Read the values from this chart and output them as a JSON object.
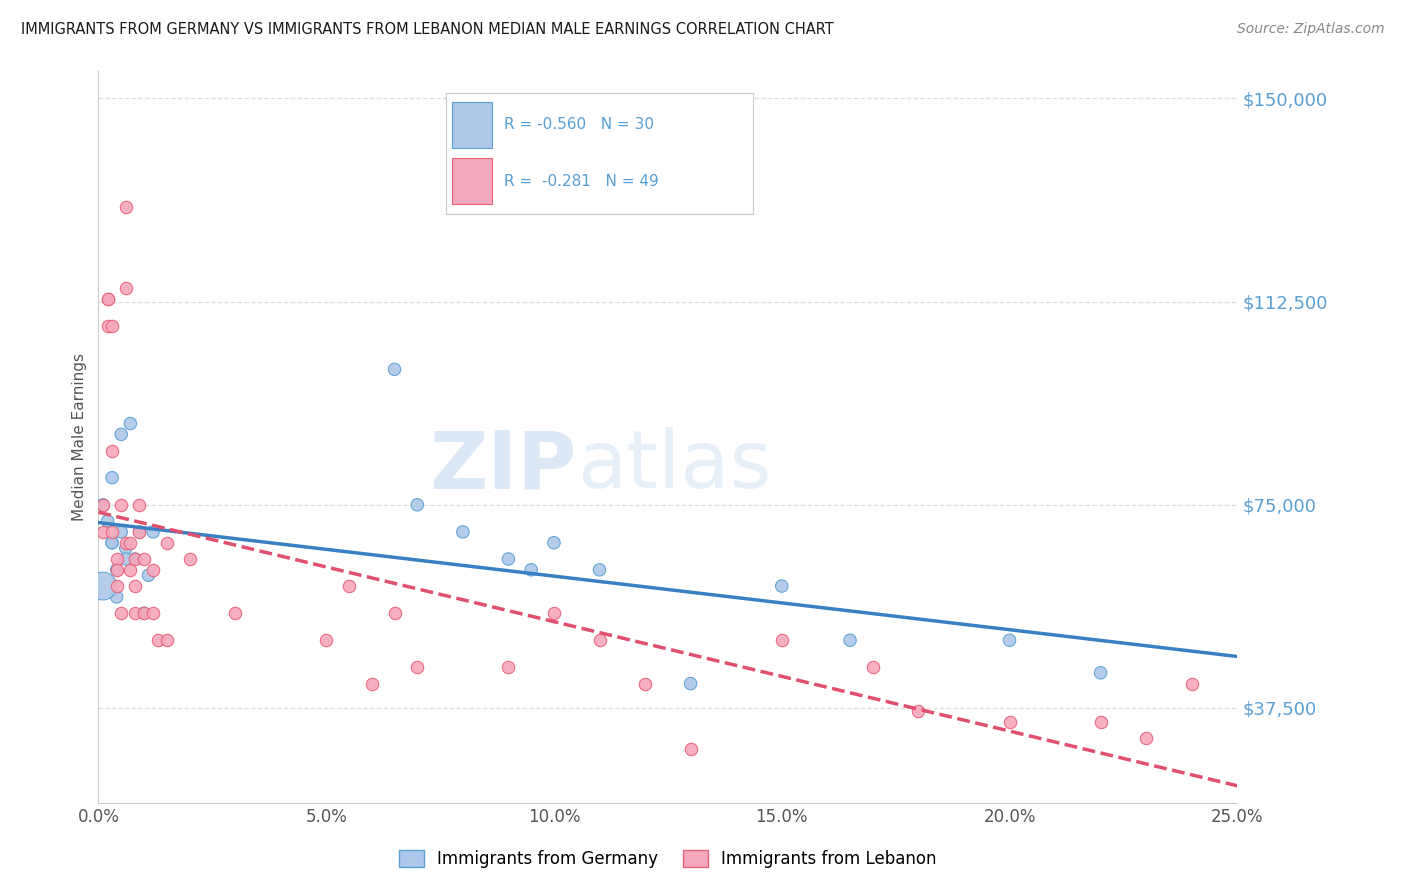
{
  "title": "IMMIGRANTS FROM GERMANY VS IMMIGRANTS FROM LEBANON MEDIAN MALE EARNINGS CORRELATION CHART",
  "source": "Source: ZipAtlas.com",
  "ylabel": "Median Male Earnings",
  "xmin": 0.0,
  "xmax": 0.25,
  "ymin": 20000,
  "ymax": 155000,
  "yticks": [
    37500,
    75000,
    112500,
    150000
  ],
  "ytick_labels": [
    "$37,500",
    "$75,000",
    "$112,500",
    "$150,000"
  ],
  "xticks": [
    0.0,
    0.05,
    0.1,
    0.15,
    0.2,
    0.25
  ],
  "watermark_zip": "ZIP",
  "watermark_atlas": "atlas",
  "germany_R": -0.56,
  "germany_N": 30,
  "lebanon_R": -0.281,
  "lebanon_N": 49,
  "germany_color": "#adc8e8",
  "lebanon_color": "#f5a8bb",
  "germany_edge_color": "#5a9fd4",
  "lebanon_edge_color": "#e8607a",
  "germany_line_color": "#3a7fc1",
  "lebanon_line_color": "#e0506e",
  "germany_points_x": [
    0.001,
    0.002,
    0.003,
    0.003,
    0.004,
    0.004,
    0.005,
    0.005,
    0.006,
    0.007,
    0.008,
    0.009,
    0.01,
    0.011,
    0.012,
    0.065,
    0.07,
    0.08,
    0.09,
    0.095,
    0.1,
    0.11,
    0.13,
    0.15,
    0.165,
    0.2,
    0.22,
    0.001,
    0.003,
    0.006
  ],
  "germany_points_y": [
    75000,
    72000,
    68000,
    80000,
    63000,
    58000,
    70000,
    88000,
    67000,
    90000,
    65000,
    70000,
    55000,
    62000,
    70000,
    100000,
    75000,
    70000,
    65000,
    63000,
    68000,
    63000,
    42000,
    60000,
    50000,
    50000,
    44000,
    60000,
    68000,
    65000
  ],
  "germany_sizes": [
    80,
    80,
    80,
    80,
    80,
    80,
    80,
    80,
    80,
    80,
    80,
    80,
    80,
    80,
    80,
    80,
    80,
    80,
    80,
    80,
    80,
    80,
    80,
    80,
    80,
    80,
    80,
    400,
    80,
    80
  ],
  "lebanon_points_x": [
    0.001,
    0.001,
    0.002,
    0.002,
    0.002,
    0.003,
    0.003,
    0.003,
    0.004,
    0.004,
    0.004,
    0.005,
    0.005,
    0.006,
    0.006,
    0.006,
    0.007,
    0.007,
    0.008,
    0.008,
    0.008,
    0.009,
    0.009,
    0.01,
    0.01,
    0.012,
    0.012,
    0.013,
    0.015,
    0.015,
    0.02,
    0.03,
    0.05,
    0.055,
    0.06,
    0.065,
    0.07,
    0.09,
    0.1,
    0.11,
    0.12,
    0.13,
    0.15,
    0.17,
    0.18,
    0.2,
    0.22,
    0.23,
    0.24
  ],
  "lebanon_points_y": [
    75000,
    70000,
    113000,
    113000,
    108000,
    108000,
    85000,
    70000,
    65000,
    63000,
    60000,
    75000,
    55000,
    115000,
    68000,
    130000,
    68000,
    63000,
    65000,
    60000,
    55000,
    75000,
    70000,
    65000,
    55000,
    63000,
    55000,
    50000,
    68000,
    50000,
    65000,
    55000,
    50000,
    60000,
    42000,
    55000,
    45000,
    45000,
    55000,
    50000,
    42000,
    30000,
    50000,
    45000,
    37000,
    35000,
    35000,
    32000,
    42000
  ],
  "title_color": "#1a1a1a",
  "source_color": "#888888",
  "tick_color": "#5a9fd4",
  "grid_color": "#dddddd",
  "background_color": "#ffffff",
  "legend_text_color": "#5a9fd4",
  "legend_border_color": "#cccccc"
}
